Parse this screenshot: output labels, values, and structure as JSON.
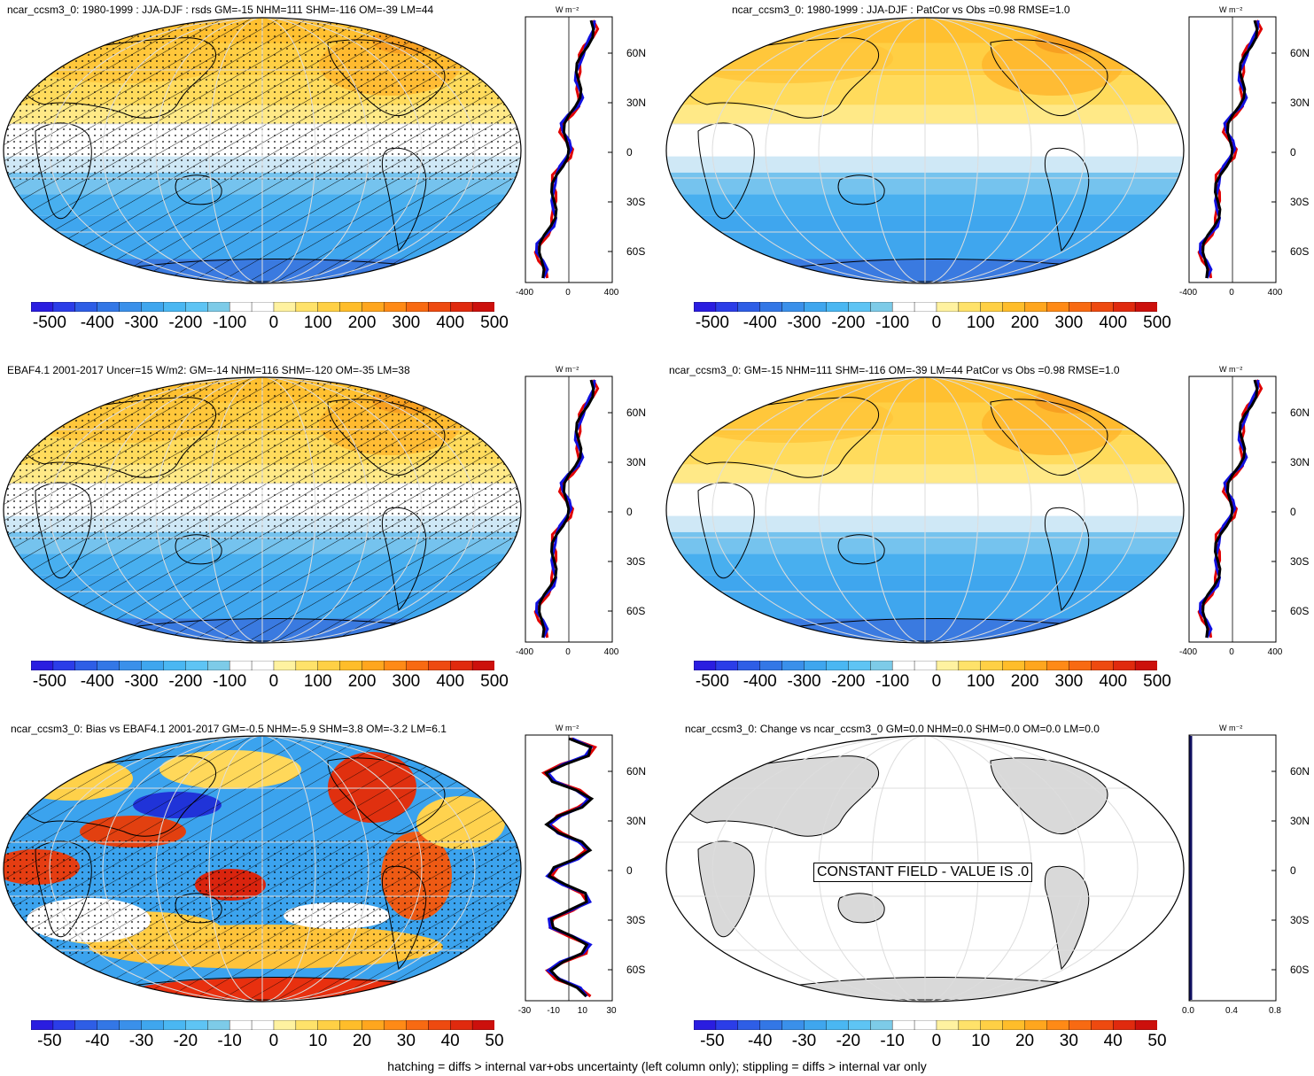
{
  "panels": [
    {
      "title": "ncar_ccsm3_0: 1980-1999 : JJA-DJF : rsds GM=-15 NHM=111 SHM=-116 OM=-39 LM=44",
      "kind": "mean",
      "hatch": true,
      "profile_ticks": [
        "-400",
        "0",
        "400"
      ],
      "lat_labels": [
        "60N",
        "30N",
        "0",
        "30S",
        "60S"
      ],
      "unit": "W m⁻²"
    },
    {
      "title": "ncar_ccsm3_0: 1980-1999 : JJA-DJF : PatCor vs Obs =0.98 RMSE=1.0",
      "kind": "mean",
      "hatch": false,
      "profile_ticks": [
        "-400",
        "0",
        "400"
      ],
      "lat_labels": [
        "60N",
        "30N",
        "0",
        "30S",
        "60S"
      ],
      "unit": "W m⁻²"
    },
    {
      "title": "EBAF4.1 2001-2017 Uncer=15 W/m2: GM=-14 NHM=116 SHM=-120 OM=-35 LM=38",
      "kind": "mean",
      "hatch": true,
      "profile_ticks": [
        "-400",
        "0",
        "400"
      ],
      "lat_labels": [
        "60N",
        "30N",
        "0",
        "30S",
        "60S"
      ],
      "unit": "W m⁻²"
    },
    {
      "title": "ncar_ccsm3_0: GM=-15 NHM=111 SHM=-116 OM=-39 LM=44 PatCor vs Obs =0.98 RMSE=1.0",
      "kind": "mean",
      "hatch": false,
      "profile_ticks": [
        "-400",
        "0",
        "400"
      ],
      "lat_labels": [
        "60N",
        "30N",
        "0",
        "30S",
        "60S"
      ],
      "unit": "W m⁻²"
    },
    {
      "title": "ncar_ccsm3_0: Bias vs EBAF4.1 2001-2017 GM=-0.5 NHM=-5.9 SHM=3.8 OM=-3.2 LM=6.1",
      "kind": "bias",
      "hatch": true,
      "profile_ticks": [
        "-30",
        "-10",
        "10",
        "30"
      ],
      "lat_labels": [
        "60N",
        "30N",
        "0",
        "30S",
        "60S"
      ],
      "unit": "W m⁻²"
    },
    {
      "title": "ncar_ccsm3_0: Change vs ncar_ccsm3_0 GM=0.0 NHM=0.0 SHM=0.0 OM=0.0 LM=0.0",
      "kind": "constant",
      "hatch": false,
      "profile_ticks": [
        "0.0",
        "0.4",
        "0.8"
      ],
      "lat_labels": [
        "60N",
        "30N",
        "0",
        "30S",
        "60S"
      ],
      "unit": "W m⁻²",
      "constant_label": "CONSTANT FIELD - VALUE IS .0"
    }
  ],
  "colorbars": {
    "large": [
      "-500",
      "-400",
      "-300",
      "-200",
      "-100",
      "0",
      "100",
      "200",
      "300",
      "400",
      "500"
    ],
    "small": [
      "-50",
      "-40",
      "-30",
      "-20",
      "-10",
      "0",
      "10",
      "20",
      "30",
      "40",
      "50"
    ],
    "colors": [
      "#2a1de0",
      "#2b3de8",
      "#2e5ee6",
      "#3377e6",
      "#3a90ea",
      "#3fa6ee",
      "#4ab7f2",
      "#5ec4f4",
      "#7dcbe8",
      "#ffffff",
      "#ffffff",
      "#fff2a0",
      "#ffe26a",
      "#ffd045",
      "#ffbd2a",
      "#ffa61e",
      "#ff8a16",
      "#f86a12",
      "#ee4a10",
      "#e02a0e",
      "#cc100c"
    ]
  },
  "footnote": "hatching = diffs > internal var+obs uncertainty (left column only); stippling = diffs > internal var only",
  "colors": {
    "profile_model": "#e00000",
    "profile_obs": "#1010e0",
    "profile_mean": "#000000",
    "land": "#d9d9d9",
    "grid": "#dddddd"
  }
}
